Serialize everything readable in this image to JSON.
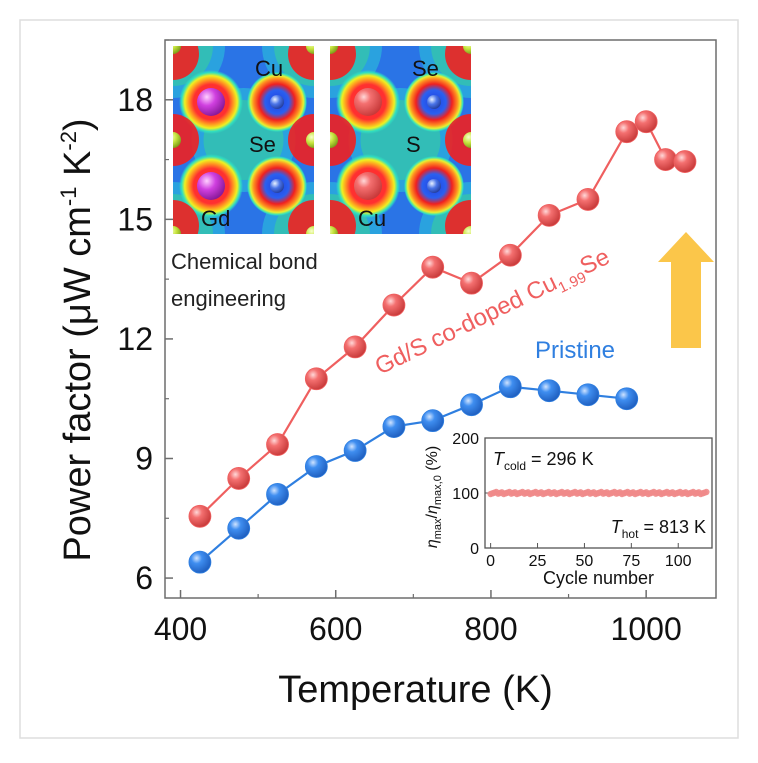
{
  "chart_data": {
    "type": "line",
    "xlabel": "Temperature (K)",
    "ylabel": "Power factor (μW cm",
    "ylabel_sup1": "-1",
    "ylabel_mid": " K",
    "ylabel_sup2": "-2",
    "ylabel_end": ")",
    "xlim": [
      380,
      1090
    ],
    "ylim": [
      5.5,
      19.5
    ],
    "x_ticks": [
      400,
      600,
      800,
      1000
    ],
    "y_ticks": [
      6,
      9,
      12,
      15,
      18
    ],
    "series": [
      {
        "name": "Gd/S co-doped Cu1.99Se",
        "color": "#ef5f5f",
        "x": [
          425,
          475,
          525,
          575,
          625,
          675,
          725,
          775,
          825,
          875,
          925,
          975,
          1000,
          1025,
          1050
        ],
        "y": [
          7.55,
          8.5,
          9.35,
          11.0,
          11.8,
          12.85,
          13.8,
          13.4,
          14.1,
          15.1,
          15.5,
          17.2,
          17.45,
          16.5,
          16.45
        ]
      },
      {
        "name": "Pristine",
        "color": "#2f7fe0",
        "x": [
          425,
          475,
          525,
          575,
          625,
          675,
          725,
          775,
          825,
          875,
          925,
          975
        ],
        "y": [
          6.4,
          7.25,
          8.1,
          8.8,
          9.2,
          9.8,
          9.95,
          10.35,
          10.8,
          10.7,
          10.6,
          10.5
        ]
      }
    ],
    "labels": {
      "doped_prefix": "Gd/S co-doped Cu",
      "doped_sub": "1.99",
      "doped_suffix": "Se",
      "pristine": "Pristine"
    },
    "arrow_color": "#fbc64a",
    "structure_inset": {
      "caption_line1": "Chemical bond",
      "caption_line2": "engineering",
      "left_labels": [
        "Cu",
        "Se",
        "Gd"
      ],
      "right_labels": [
        "Se",
        "S",
        "Cu"
      ]
    },
    "efficiency_inset": {
      "type": "scatter",
      "xlabel": "Cycle number",
      "ylabel_parts": [
        "η",
        "max",
        "/",
        "η",
        "max,0",
        " (%)"
      ],
      "xlim": [
        -3,
        118
      ],
      "ylim": [
        0,
        200
      ],
      "x_ticks": [
        0,
        25,
        50,
        75,
        100
      ],
      "y_ticks": [
        0,
        100,
        200
      ],
      "cycles_from": 0,
      "cycles_to": 115,
      "value": 100,
      "color": "#f08a8a",
      "t_cold_sym": "T",
      "t_cold_sub": "cold",
      "t_cold_val": " = 296 K",
      "t_hot_sym": "T",
      "t_hot_sub": "hot",
      "t_hot_val": " = 813 K"
    }
  }
}
